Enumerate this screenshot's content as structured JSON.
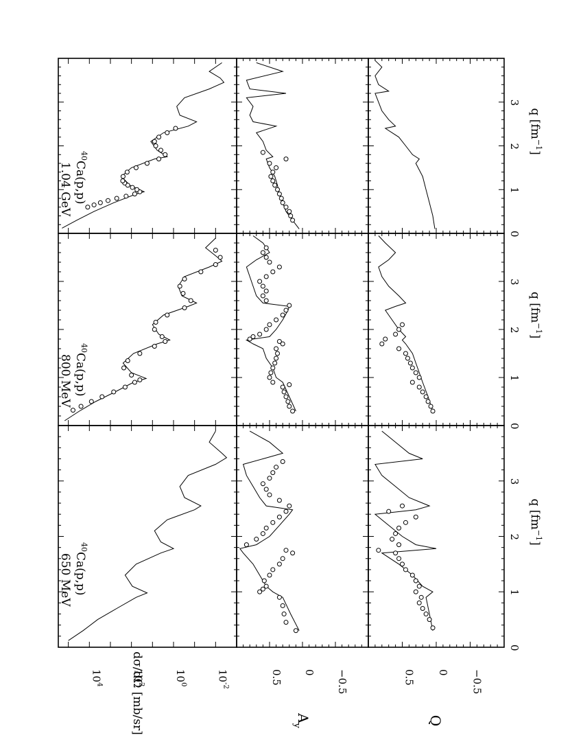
{
  "chart_data": [
    {
      "type": "line",
      "panel": "cross-section",
      "orientation": "rotated 90 degrees clockwise",
      "ylabel": "dσ/dΩ  [mb/sr]",
      "yscale": "log",
      "ylim": [
        0.001,
        300000
      ],
      "yticks": [
        "10^4",
        "10^2",
        "10^0",
        "10^-2"
      ],
      "xlim": [
        0,
        4
      ],
      "columns": [
        {
          "label": "⁴⁰Ca(p,p) 650 MeV",
          "label_lines": [
            "40Ca(p,p)",
            "650 MeV"
          ],
          "label_sup": "40",
          "label_main": "Ca(p,p)",
          "label_energy": "650 MeV",
          "curve_x": [
            0.12,
            0.3,
            0.5,
            0.7,
            0.9,
            0.98,
            1.1,
            1.3,
            1.5,
            1.7,
            1.78,
            1.9,
            2.1,
            2.3,
            2.48,
            2.55,
            2.7,
            2.9,
            3.1,
            3.3,
            3.42,
            3.5,
            3.7,
            3.9
          ],
          "curve_y": [
            100000,
            20000,
            4000,
            500,
            60,
            18,
            90,
            200,
            60,
            4,
            1,
            4,
            8,
            2,
            0.1,
            0.05,
            0.3,
            0.5,
            0.2,
            0.01,
            0.003,
            0.005,
            0.02,
            0.01
          ],
          "data_x": [],
          "data_y": []
        },
        {
          "label": "⁴⁰Ca(p,p) 800 MeV",
          "label_sup": "40",
          "label_main": "Ca(p,p)",
          "label_energy": "800 MeV",
          "curve_x": [
            0.1,
            0.3,
            0.5,
            0.7,
            0.9,
            0.98,
            1.1,
            1.3,
            1.5,
            1.7,
            1.78,
            1.9,
            2.1,
            2.3,
            2.48,
            2.55,
            2.7,
            2.9,
            3.1,
            3.3,
            3.42,
            3.5,
            3.7,
            3.9
          ],
          "curve_y": [
            150000,
            30000,
            5000,
            600,
            80,
            20,
            100,
            250,
            80,
            6,
            1.5,
            5,
            10,
            3,
            0.2,
            0.08,
            0.4,
            0.6,
            0.3,
            0.02,
            0.005,
            0.008,
            0.03,
            0.01
          ],
          "data_x": [
            0.32,
            0.4,
            0.5,
            0.6,
            0.7,
            0.8,
            0.9,
            0.95,
            1.05,
            1.2,
            1.35,
            1.5,
            1.65,
            1.75,
            1.85,
            2.0,
            2.15,
            2.3,
            2.45,
            2.6,
            2.75,
            2.9,
            3.05,
            3.2,
            3.35,
            3.5,
            3.65
          ],
          "data_y": [
            60000,
            25000,
            8000,
            2500,
            700,
            200,
            70,
            40,
            100,
            230,
            150,
            40,
            8,
            2.5,
            3.5,
            8,
            7,
            2,
            0.3,
            0.15,
            0.35,
            0.5,
            0.3,
            0.05,
            0.01,
            0.006,
            0.01
          ]
        },
        {
          "label": "⁴⁰Ca(p,p) 1.04 GeV",
          "label_sup": "40",
          "label_main": "Ca(p,p)",
          "label_energy": "1.04 GeV",
          "curve_x": [
            0.12,
            0.3,
            0.5,
            0.7,
            0.9,
            0.95,
            1.1,
            1.3,
            1.5,
            1.7,
            1.75,
            1.9,
            2.1,
            2.3,
            2.45,
            2.55,
            2.7,
            2.9,
            3.1,
            3.3,
            3.45,
            3.55,
            3.7,
            3.9
          ],
          "curve_y": [
            200000,
            40000,
            6000,
            700,
            60,
            25,
            120,
            300,
            100,
            8,
            2,
            6,
            12,
            3,
            0.2,
            0.08,
            0.5,
            0.7,
            0.3,
            0.02,
            0.004,
            0.006,
            0.02,
            0.005
          ],
          "data_x": [
            0.6,
            0.65,
            0.7,
            0.75,
            0.8,
            0.85,
            0.9,
            0.95,
            1.0,
            1.05,
            1.1,
            1.15,
            1.2,
            1.3,
            1.4,
            1.5,
            1.6,
            1.7,
            1.8,
            1.9,
            2.0,
            2.1,
            2.2,
            2.3,
            2.4
          ],
          "data_y": [
            12000,
            6000,
            3000,
            1300,
            500,
            180,
            70,
            40,
            55,
            90,
            150,
            210,
            260,
            250,
            160,
            60,
            18,
            5,
            2.5,
            4,
            7,
            8,
            5,
            2,
            0.8
          ]
        }
      ]
    },
    {
      "type": "scatter",
      "panel": "analyzing power",
      "ylabel": "Ay",
      "ylabel_main": "A",
      "ylabel_sub": "y",
      "ylim": [
        -1,
        1
      ],
      "yticks": [
        "0.5",
        "0",
        "−0.5"
      ],
      "yticks_values": [
        0.5,
        0,
        -0.5
      ],
      "xlim": [
        0,
        4
      ],
      "columns": [
        {
          "label": "650 MeV",
          "curve_x": [
            0.3,
            0.6,
            0.9,
            1.0,
            1.1,
            1.3,
            1.5,
            1.7,
            1.78,
            1.85,
            2.0,
            2.2,
            2.4,
            2.48,
            2.55,
            2.7,
            2.9,
            3.1,
            3.3,
            3.4,
            3.5,
            3.7,
            3.9
          ],
          "curve_y": [
            0.05,
            0.18,
            0.3,
            0.45,
            0.55,
            0.65,
            0.75,
            0.9,
            0.95,
            0.7,
            0.5,
            0.35,
            0.2,
            0.15,
            0.55,
            0.65,
            0.75,
            0.85,
            0.9,
            0.6,
            0.3,
            0.5,
            0.8
          ],
          "data_x": [
            0.3,
            0.45,
            0.6,
            0.75,
            0.9,
            1.0,
            1.05,
            1.1,
            1.2,
            1.3,
            1.4,
            1.5,
            1.6,
            1.7,
            1.75,
            1.85,
            1.95,
            2.05,
            2.15,
            2.25,
            2.35,
            2.45,
            2.55,
            2.65,
            2.75,
            2.85,
            2.95,
            3.05,
            3.15,
            3.25,
            3.35
          ],
          "data_y": [
            0.1,
            0.25,
            0.28,
            0.3,
            0.35,
            0.65,
            0.6,
            0.55,
            0.58,
            0.5,
            0.45,
            0.35,
            0.3,
            0.15,
            0.25,
            0.85,
            0.7,
            0.6,
            0.55,
            0.45,
            0.35,
            0.25,
            0.2,
            0.35,
            0.5,
            0.55,
            0.6,
            0.5,
            0.45,
            0.4,
            0.3
          ]
        },
        {
          "label": "800 MeV",
          "curve_x": [
            0.3,
            0.6,
            0.9,
            1.0,
            1.2,
            1.4,
            1.6,
            1.7,
            1.78,
            1.85,
            2.0,
            2.2,
            2.4,
            2.48,
            2.55,
            2.7,
            2.9,
            3.1,
            3.3,
            3.45,
            3.6,
            3.8,
            3.95
          ],
          "curve_y": [
            0.1,
            0.2,
            0.3,
            0.4,
            0.45,
            0.55,
            0.6,
            0.75,
            0.85,
            0.5,
            0.4,
            0.3,
            0.22,
            0.2,
            0.6,
            0.7,
            0.75,
            0.8,
            0.85,
            0.7,
            0.5,
            0.6,
            0.75
          ],
          "data_x": [
            0.3,
            0.4,
            0.5,
            0.6,
            0.7,
            0.8,
            0.85,
            0.9,
            1.0,
            1.1,
            1.2,
            1.3,
            1.4,
            1.5,
            1.6,
            1.7,
            1.75,
            1.8,
            1.85,
            1.9,
            2.0,
            2.1,
            2.2,
            2.3,
            2.4,
            2.5,
            2.6,
            2.7,
            2.8,
            2.9,
            3.0,
            3.1,
            3.2,
            3.3,
            3.4,
            3.5,
            3.6,
            3.7
          ],
          "data_y": [
            0.15,
            0.2,
            0.22,
            0.25,
            0.28,
            0.3,
            0.2,
            0.45,
            0.5,
            0.48,
            0.45,
            0.42,
            0.4,
            0.38,
            0.4,
            0.3,
            0.35,
            0.8,
            0.75,
            0.65,
            0.55,
            0.5,
            0.4,
            0.3,
            0.25,
            0.2,
            0.55,
            0.6,
            0.55,
            0.6,
            0.65,
            0.55,
            0.45,
            0.35,
            0.5,
            0.55,
            0.6,
            0.55
          ]
        },
        {
          "label": "1.04 GeV",
          "curve_x": [
            0.1,
            0.3,
            0.5,
            0.7,
            0.9,
            1.1,
            1.3,
            1.5,
            1.7,
            1.75,
            1.9,
            2.1,
            2.3,
            2.45,
            2.55,
            2.7,
            2.9,
            3.1,
            3.2,
            3.3,
            3.5,
            3.7,
            3.9
          ],
          "curve_y": [
            0.05,
            0.15,
            0.25,
            0.3,
            0.35,
            0.38,
            0.42,
            0.5,
            0.55,
            0.45,
            0.55,
            0.6,
            0.7,
            0.4,
            0.75,
            0.8,
            0.75,
            0.85,
            0.25,
            0.8,
            0.85,
            0.3,
            0.7
          ],
          "data_x": [
            0.3,
            0.4,
            0.5,
            0.6,
            0.7,
            0.8,
            0.9,
            1.0,
            1.1,
            1.2,
            1.3,
            1.4,
            1.5,
            1.6,
            1.7,
            1.85
          ],
          "data_y": [
            0.15,
            0.18,
            0.2,
            0.25,
            0.3,
            0.32,
            0.35,
            0.38,
            0.42,
            0.45,
            0.48,
            0.45,
            0.4,
            0.5,
            0.25,
            0.6
          ]
        }
      ]
    },
    {
      "type": "scatter",
      "panel": "spin rotation",
      "ylabel": "Q",
      "ylim": [
        -1,
        1
      ],
      "yticks": [
        "0.5",
        "0",
        "−0.5"
      ],
      "yticks_values": [
        0.5,
        0,
        -0.5
      ],
      "xlim": [
        0,
        4
      ],
      "xlabel": "q  [fm⁻¹]",
      "xlabel_main": "q  [fm",
      "xlabel_sup": "−1",
      "xlabel_close": "]",
      "xticks": [
        "0",
        "1",
        "2",
        "3"
      ],
      "xticks_values": [
        0,
        1,
        2,
        3
      ],
      "columns": [
        {
          "label": "650 MeV",
          "curve_x": [
            0.3,
            0.6,
            0.9,
            1.0,
            1.1,
            1.3,
            1.5,
            1.7,
            1.78,
            1.85,
            2.0,
            2.2,
            2.4,
            2.48,
            2.55,
            2.7,
            2.9,
            3.1,
            3.3,
            3.4,
            3.5,
            3.7,
            3.9
          ],
          "curve_y": [
            0.05,
            0.1,
            0.15,
            0.05,
            0.2,
            0.35,
            0.55,
            0.8,
            0.0,
            0.3,
            0.5,
            0.7,
            0.9,
            0.3,
            0.1,
            0.4,
            0.6,
            0.8,
            0.9,
            0.2,
            0.4,
            0.6,
            0.8
          ],
          "data_x": [
            0.35,
            0.5,
            0.6,
            0.7,
            0.8,
            0.9,
            1.0,
            1.1,
            1.2,
            1.3,
            1.4,
            1.5,
            1.6,
            1.7,
            1.75,
            1.85,
            1.95,
            2.05,
            2.15,
            2.25,
            2.35,
            2.45,
            2.55
          ],
          "data_y": [
            0.05,
            0.1,
            0.15,
            0.2,
            0.25,
            0.22,
            0.3,
            0.25,
            0.3,
            0.35,
            0.45,
            0.5,
            0.55,
            0.6,
            0.85,
            0.55,
            0.65,
            0.6,
            0.55,
            0.45,
            0.3,
            0.7,
            0.5
          ]
        },
        {
          "label": "800 MeV",
          "curve_x": [
            0.3,
            0.6,
            0.9,
            1.1,
            1.3,
            1.5,
            1.7,
            1.78,
            1.85,
            2.0,
            2.2,
            2.4,
            2.48,
            2.55,
            2.7,
            2.9,
            3.1,
            3.3,
            3.45,
            3.6,
            3.8,
            3.95
          ],
          "curve_y": [
            0.05,
            0.12,
            0.2,
            0.25,
            0.3,
            0.35,
            0.45,
            0.5,
            0.45,
            0.55,
            0.65,
            0.75,
            0.6,
            0.45,
            0.55,
            0.7,
            0.8,
            0.85,
            0.7,
            0.6,
            0.75,
            0.85
          ],
          "data_x": [
            0.3,
            0.4,
            0.5,
            0.6,
            0.7,
            0.8,
            0.9,
            1.0,
            1.1,
            1.2,
            1.3,
            1.4,
            1.5,
            1.6,
            1.7,
            1.8,
            1.9,
            2.0,
            2.1
          ],
          "data_y": [
            0.05,
            0.08,
            0.12,
            0.15,
            0.2,
            0.25,
            0.35,
            0.25,
            0.3,
            0.35,
            0.38,
            0.42,
            0.45,
            0.55,
            0.8,
            0.75,
            0.6,
            0.55,
            0.5
          ]
        },
        {
          "label": "1.04 GeV",
          "curve_x": [
            0.1,
            0.4,
            0.7,
            1.0,
            1.3,
            1.6,
            1.7,
            1.8,
            2.0,
            2.2,
            2.4,
            2.45,
            2.6,
            2.8,
            3.0,
            3.2,
            3.25,
            3.4,
            3.6,
            3.8,
            3.95
          ],
          "curve_y": [
            0.02,
            0.05,
            0.1,
            0.15,
            0.2,
            0.3,
            0.25,
            0.35,
            0.45,
            0.55,
            0.75,
            0.6,
            0.7,
            0.8,
            0.85,
            0.9,
            0.7,
            0.85,
            0.9,
            0.8,
            0.9
          ],
          "data_x": [],
          "data_y": []
        }
      ]
    }
  ]
}
